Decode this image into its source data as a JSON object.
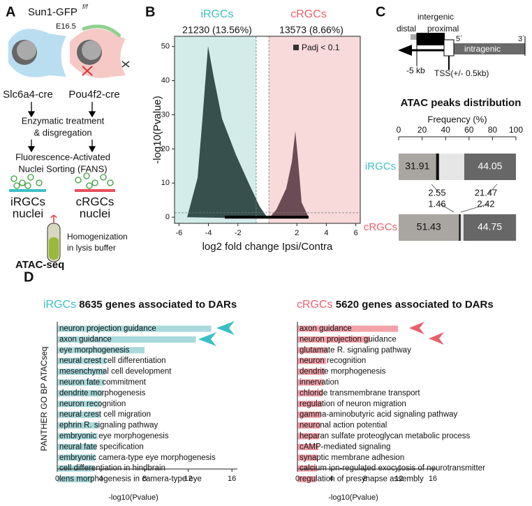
{
  "panel_labels": [
    "A",
    "B",
    "C",
    "D"
  ],
  "panel_a": {
    "mouse": "Sun1-GFP",
    "genotype": "f/f",
    "age": "E16.5",
    "left_cre": "Slc6a4-cre",
    "right_cre": "Pou4f2-cre",
    "step1": [
      "Enzymatic treatment",
      "& disgregation"
    ],
    "step2": [
      "Fluorescence-Activated",
      "Nuclei Sorting (FANS)"
    ],
    "left_nuclei": [
      "iRGCs",
      "nuclei"
    ],
    "right_nuclei": [
      "cRGCs",
      "nuclei"
    ],
    "step3": [
      "Homogenization",
      "in lysis buffer"
    ],
    "method": "ATAC-seq"
  },
  "panel_c_diagram": {
    "intergenic": "intergenic",
    "distal": "distal",
    "proximal": "proximal",
    "five_prime": "5´",
    "three_prime": "3´",
    "intragenic": "intragenic",
    "minus5kb": "-5 kb",
    "tss": "TSS(+/- 0.5kb)"
  },
  "chart_data": [
    {
      "type": "scatter",
      "left_group": "iRGCs",
      "left_count": "21230 (13.56%)",
      "right_group": "cRGCs",
      "right_count": "13573 (8.66%)",
      "legend_label": "Padj < 0.1",
      "xlabel": "log2 fold change Ipsi/Contra",
      "ylabel": "-log10(Pvalue)",
      "xlim": [
        -6.3,
        6.3
      ],
      "ylim": [
        -1.8,
        53
      ],
      "xticks": [
        -6,
        -4,
        -2,
        2,
        4,
        6
      ],
      "yticks": [
        0,
        10,
        20,
        30,
        40,
        50
      ],
      "vlines": [
        -0.76,
        0.1
      ],
      "hline": 1.3
    },
    {
      "type": "stacked-bar",
      "title": "ATAC peaks distribution",
      "xlabel": "Frequency (%)",
      "categories": [
        "iRGCs",
        "cRGCs"
      ],
      "xlim": [
        0,
        100
      ],
      "xticks": [
        0,
        20,
        40,
        60,
        80,
        100
      ],
      "series": [
        {
          "color": "#a9a5a0",
          "values": [
            31.91,
            51.43
          ]
        },
        {
          "color": "#111111",
          "values": [
            2.55,
            1.46
          ]
        },
        {
          "color": "#e6e6e6",
          "values": [
            21.47,
            2.42
          ]
        },
        {
          "color": "#676767",
          "values": [
            44.05,
            44.75
          ]
        }
      ]
    },
    {
      "type": "bar",
      "group": "iRGCs",
      "count": "8635",
      "title": "genes associated to DARs",
      "ylabel": "PANTHER GO BP ATACseq",
      "xlabel": "-log10(Pvalue)",
      "color": "#a9d9dc",
      "xlim": [
        0,
        16.5
      ],
      "xticks": [
        0,
        4,
        8,
        12,
        16
      ],
      "categories": [
        "neuron projection guidance",
        "axon guidance",
        "eye morphogenesis",
        "neural crest cell differentiation",
        "mesenchymal cell development",
        "neuron fate commitment",
        "dendrite morphogenesis",
        "neuron recognition",
        "neural crest cell migration",
        "ephrin R. signaling pathway",
        "embryonic eye morphogenesis",
        "neural fate specification",
        "embryonic camera-type eye morphogenesis",
        "cell differentiation in hindbrain",
        "lens morphogenesis in camera-type eye"
      ],
      "values": [
        14.1,
        12.7,
        8.0,
        4.5,
        4.4,
        4.3,
        4.2,
        4.0,
        3.9,
        3.8,
        3.7,
        3.6,
        3.5,
        3.4,
        3.3
      ]
    },
    {
      "type": "bar",
      "group": "cRGCs",
      "count": "5620",
      "title": "genes associated to DARs",
      "xlabel": "-log10(Pvalue)",
      "color": "#f2a3aa",
      "xlim": [
        0,
        16.5
      ],
      "xticks": [
        0,
        4,
        8,
        12,
        16
      ],
      "categories": [
        "axon guidance",
        "neuron projection guidance",
        "glutamate R. signaling pathway",
        "neuron recognition",
        "dendrite morphogenesis",
        "innervation",
        "chloride transmembrane transport",
        "regulation of neuron migration",
        "gamma-aminobutyric acid signaling pathway",
        "neuronal action potential",
        "heparan sulfate proteoglycan metabolic process",
        "cAMP-mediated signaling",
        "synaptic membrane adhesion",
        "calcium ion-regulated exocytosis of neurotransmitter",
        "regulation of presynapse assembly"
      ],
      "values": [
        11.9,
        8.6,
        3.6,
        3.4,
        3.3,
        3.1,
        3.0,
        2.9,
        2.8,
        2.7,
        2.6,
        2.5,
        2.4,
        2.3,
        2.2
      ]
    }
  ]
}
